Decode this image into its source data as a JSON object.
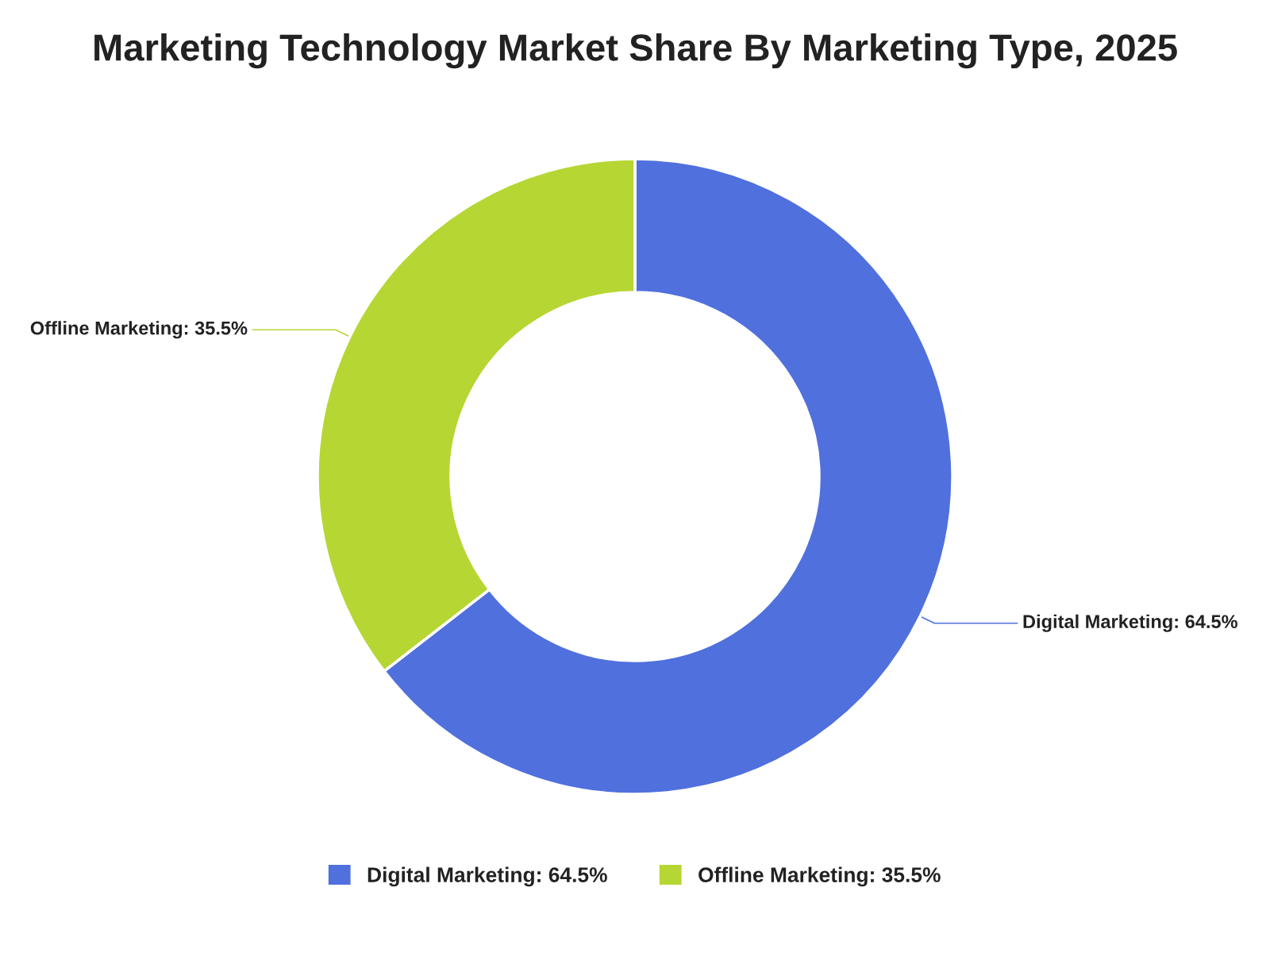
{
  "chart_data": {
    "type": "donut",
    "title": "Marketing Technology Market Share By Marketing Type, 2025",
    "categories": [
      "Digital Marketing",
      "Offline Marketing"
    ],
    "values": [
      64.5,
      35.5
    ],
    "value_labels": [
      "64.5%",
      "35.5%"
    ],
    "colors": [
      "#5070dd",
      "#b6d634"
    ],
    "data_labels": true,
    "legend": "bottom"
  }
}
